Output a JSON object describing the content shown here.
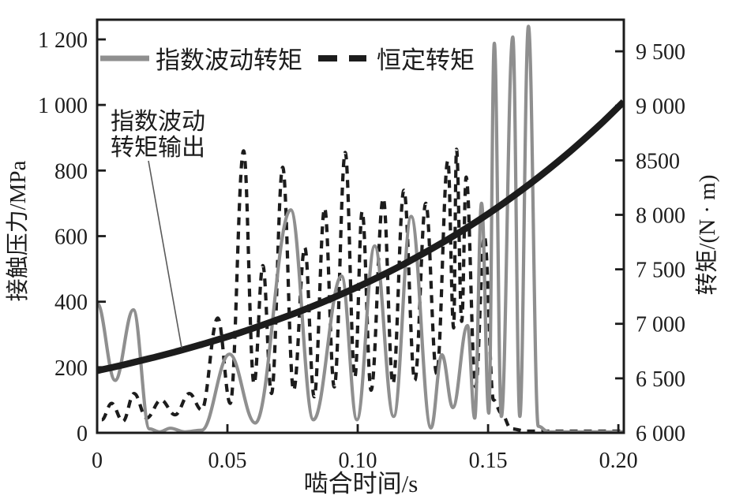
{
  "colors": {
    "ink": "#1c1c1c",
    "gray_series": "#8f8f8f",
    "background": "#ffffff",
    "leader_line": "#5a5a5a"
  },
  "chart_data": {
    "type": "line",
    "title": "",
    "xlabel": "啮合时间/s",
    "ylabel_left": "接触压力/MPa",
    "ylabel_right": "转矩/(N · m)",
    "xlim": [
      0,
      0.2021
    ],
    "ylim_left": [
      0,
      1260
    ],
    "ylim_right": [
      6000,
      9790
    ],
    "grid": false,
    "legend_position": "top-inside",
    "x_ticks": [
      {
        "v": 0,
        "label": "0"
      },
      {
        "v": 0.05,
        "label": "0.05"
      },
      {
        "v": 0.1,
        "label": "0.10"
      },
      {
        "v": 0.15,
        "label": "0.15"
      },
      {
        "v": 0.2,
        "label": "0.20"
      }
    ],
    "y_ticks_left": [
      {
        "v": 0,
        "label": "0"
      },
      {
        "v": 200,
        "label": "200"
      },
      {
        "v": 400,
        "label": "400"
      },
      {
        "v": 600,
        "label": "600"
      },
      {
        "v": 800,
        "label": "800"
      },
      {
        "v": 1000,
        "label": "1 000"
      },
      {
        "v": 1200,
        "label": "1 200"
      }
    ],
    "y_ticks_right": [
      {
        "v": 6000,
        "label": "6 000"
      },
      {
        "v": 6500,
        "label": "6 500"
      },
      {
        "v": 7000,
        "label": "7 000"
      },
      {
        "v": 7500,
        "label": "7 500"
      },
      {
        "v": 8000,
        "label": "8 000"
      },
      {
        "v": 8500,
        "label": "8500"
      },
      {
        "v": 9000,
        "label": "9 000"
      },
      {
        "v": 9500,
        "label": "9 500"
      }
    ],
    "legend": [
      {
        "label": "指数波动转矩",
        "style": "solid",
        "color": "#8f8f8f"
      },
      {
        "label": "恒定转矩",
        "style": "dashed",
        "color": "#1c1c1c"
      }
    ],
    "annotation": {
      "lines": [
        "指数波动",
        "转矩输出"
      ],
      "target_series": "指数波动转矩输出"
    },
    "series": [
      {
        "name": "指数波动转矩",
        "axis": "left",
        "line": "solid",
        "color": "#8f8f8f",
        "width": 4.2,
        "interp": "extrema",
        "points": [
          [
            0.0,
            395
          ],
          [
            0.0069,
            160
          ],
          [
            0.0139,
            375
          ],
          [
            0.0201,
            12
          ],
          [
            0.024,
            3
          ],
          [
            0.0281,
            14
          ],
          [
            0.0336,
            3
          ],
          [
            0.0401,
            8
          ],
          [
            0.0508,
            240
          ],
          [
            0.0607,
            30
          ],
          [
            0.0743,
            680
          ],
          [
            0.083,
            40
          ],
          [
            0.0938,
            478
          ],
          [
            0.0997,
            40
          ],
          [
            0.1065,
            570
          ],
          [
            0.1138,
            50
          ],
          [
            0.1205,
            660
          ],
          [
            0.1281,
            15
          ],
          [
            0.1323,
            238
          ],
          [
            0.1365,
            77
          ],
          [
            0.1421,
            327
          ],
          [
            0.1449,
            45
          ],
          [
            0.1475,
            700
          ],
          [
            0.1503,
            60
          ],
          [
            0.1524,
            1188
          ],
          [
            0.1551,
            50
          ],
          [
            0.1595,
            1207
          ],
          [
            0.1622,
            50
          ],
          [
            0.1655,
            1240
          ],
          [
            0.1693,
            20
          ],
          [
            0.1732,
            3
          ],
          [
            0.2021,
            3
          ]
        ]
      },
      {
        "name": "恒定转矩",
        "axis": "left",
        "line": "dashed",
        "color": "#1c1c1c",
        "width": 4.2,
        "interp": "extrema",
        "points": [
          [
            0.0018,
            40
          ],
          [
            0.0055,
            90
          ],
          [
            0.0099,
            35
          ],
          [
            0.0142,
            120
          ],
          [
            0.019,
            45
          ],
          [
            0.0245,
            100
          ],
          [
            0.0299,
            55
          ],
          [
            0.0354,
            120
          ],
          [
            0.0401,
            70
          ],
          [
            0.0463,
            350
          ],
          [
            0.0511,
            90
          ],
          [
            0.0562,
            860
          ],
          [
            0.0602,
            150
          ],
          [
            0.0636,
            510
          ],
          [
            0.0669,
            120
          ],
          [
            0.0712,
            810
          ],
          [
            0.0754,
            130
          ],
          [
            0.0797,
            565
          ],
          [
            0.0833,
            110
          ],
          [
            0.0873,
            685
          ],
          [
            0.091,
            140
          ],
          [
            0.0952,
            855
          ],
          [
            0.0989,
            170
          ],
          [
            0.1017,
            675
          ],
          [
            0.1051,
            130
          ],
          [
            0.1098,
            715
          ],
          [
            0.1135,
            150
          ],
          [
            0.1177,
            740
          ],
          [
            0.1219,
            160
          ],
          [
            0.1261,
            700
          ],
          [
            0.1303,
            180
          ],
          [
            0.1346,
            830
          ],
          [
            0.1368,
            320
          ],
          [
            0.1379,
            865
          ],
          [
            0.1399,
            340
          ],
          [
            0.1416,
            780
          ],
          [
            0.1452,
            140
          ],
          [
            0.1486,
            600
          ],
          [
            0.1521,
            100
          ],
          [
            0.1551,
            60
          ],
          [
            0.1589,
            12
          ],
          [
            0.165,
            5
          ],
          [
            0.202,
            5
          ]
        ]
      },
      {
        "name": "指数波动转矩输出",
        "axis": "right",
        "line": "solid",
        "color": "#1c1c1c",
        "width": 8.5,
        "interp": "smooth",
        "points": [
          [
            0.0,
            6570
          ],
          [
            0.01,
            6623
          ],
          [
            0.02,
            6681
          ],
          [
            0.03,
            6743
          ],
          [
            0.04,
            6810
          ],
          [
            0.055,
            6920
          ],
          [
            0.074,
            7080
          ],
          [
            0.087,
            7203
          ],
          [
            0.1,
            7339
          ],
          [
            0.112,
            7477
          ],
          [
            0.12,
            7577
          ],
          [
            0.135,
            7780
          ],
          [
            0.15,
            8008
          ],
          [
            0.166,
            8283
          ],
          [
            0.18,
            8551
          ],
          [
            0.193,
            8828
          ],
          [
            0.202,
            9037
          ]
        ]
      }
    ]
  }
}
